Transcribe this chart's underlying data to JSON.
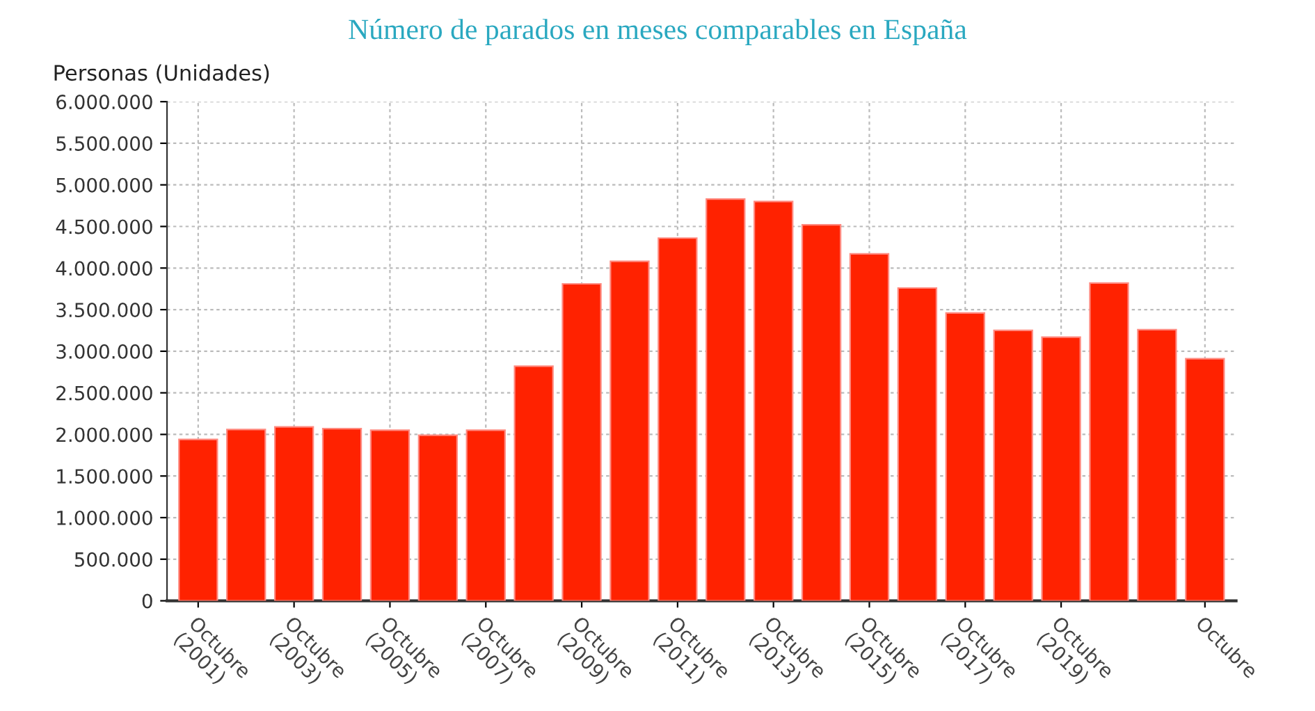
{
  "chart_data": {
    "type": "bar",
    "title": "Número de parados en meses comparables en España",
    "ylabel": "Personas (Unidades)",
    "categories": [
      "Octubre\n(2001)",
      null,
      "Octubre\n(2003)",
      null,
      "Octubre\n(2005)",
      null,
      "Octubre\n(2007)",
      null,
      "Octubre\n(2009)",
      null,
      "Octubre\n(2011)",
      null,
      "Octubre\n(2013)",
      null,
      "Octubre\n(2015)",
      null,
      "Octubre\n(2017)",
      null,
      "Octubre\n(2019)",
      null,
      null,
      "Octubre"
    ],
    "values": [
      1940000,
      2060000,
      2090000,
      2070000,
      2050000,
      1990000,
      2050000,
      2820000,
      3810000,
      4080000,
      4360000,
      4830000,
      4800000,
      4520000,
      4170000,
      3760000,
      3460000,
      3250000,
      3170000,
      3820000,
      3260000,
      2910000
    ],
    "color": "#ff2200",
    "ylim": [
      0,
      6000000
    ],
    "yticks": [
      {
        "value": 0,
        "label": "0"
      },
      {
        "value": 500000,
        "label": "500.000"
      },
      {
        "value": 1000000,
        "label": "1.000.000"
      },
      {
        "value": 1500000,
        "label": "1.500.000"
      },
      {
        "value": 2000000,
        "label": "2.000.000"
      },
      {
        "value": 2500000,
        "label": "2.500.000"
      },
      {
        "value": 3000000,
        "label": "3.000.000"
      },
      {
        "value": 3500000,
        "label": "3.500.000"
      },
      {
        "value": 4000000,
        "label": "4.000.000"
      },
      {
        "value": 4500000,
        "label": "4.500.000"
      },
      {
        "value": 5000000,
        "label": "5.000.000"
      },
      {
        "value": 5500000,
        "label": "5.500.000"
      },
      {
        "value": 6000000,
        "label": "6.000.000"
      }
    ],
    "grid": true
  }
}
